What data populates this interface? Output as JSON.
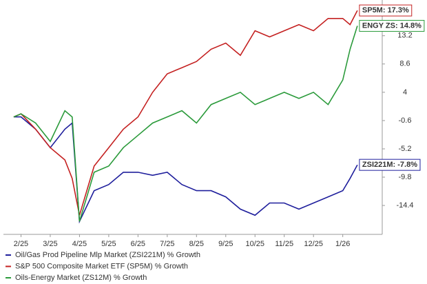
{
  "chart_data": {
    "type": "line",
    "x": [
      -0.25,
      0,
      0.5,
      1,
      1.5,
      1.75,
      2,
      2.5,
      3,
      3.5,
      4,
      4.5,
      5,
      5.5,
      6,
      6.5,
      7,
      7.5,
      8,
      8.5,
      9,
      9.5,
      10,
      10.5,
      11,
      11.25,
      11.5
    ],
    "xlim": [
      -0.6,
      12.35
    ],
    "xticks": [
      {
        "value": 0,
        "label": "2/25"
      },
      {
        "value": 1,
        "label": "3/25"
      },
      {
        "value": 2,
        "label": "4/25"
      },
      {
        "value": 3,
        "label": "5/25"
      },
      {
        "value": 4,
        "label": "6/25"
      },
      {
        "value": 5,
        "label": "7/25"
      },
      {
        "value": 6,
        "label": "8/25"
      },
      {
        "value": 7,
        "label": "9/25"
      },
      {
        "value": 8,
        "label": "10/25"
      },
      {
        "value": 9,
        "label": "11/25"
      },
      {
        "value": 10,
        "label": "12/25"
      },
      {
        "value": 11,
        "label": "1/26"
      }
    ],
    "ylim": [
      -19.1,
      19.0
    ],
    "yticks": [
      13.2,
      8.6,
      4.0,
      -0.6,
      -5.2,
      -9.8,
      -14.4
    ],
    "series": [
      {
        "name": "Oil/Gas Prod Pipeline Mlp Market (ZSI221M) % Growth",
        "color": "#1e1e9c",
        "end_label": "ZSI221M: -7.8%",
        "values": [
          0,
          0,
          -2,
          -5,
          -2,
          -1,
          -17,
          -12,
          -11,
          -9,
          -9,
          -9.5,
          -9,
          -11,
          -12,
          -12,
          -13,
          -15,
          -16,
          -14,
          -14,
          -15,
          -14,
          -13,
          -12,
          -10,
          -7.8
        ]
      },
      {
        "name": "S&P 500 Composite Market ETF (SP5M) % Growth",
        "color": "#c42020",
        "end_label": "SP5M: 17.3%",
        "values": [
          0,
          0.5,
          -2,
          -5,
          -7,
          -10,
          -16,
          -8,
          -5,
          -2,
          0,
          4,
          7,
          8,
          9,
          11,
          12,
          10,
          14,
          13,
          14,
          15,
          14,
          16,
          16,
          15,
          17.3
        ]
      },
      {
        "name": "Oils-Energy Market (ZS12M) % Growth",
        "color": "#2a9a3a",
        "end_label": "ENGY ZS: 14.8%",
        "values": [
          0,
          0.5,
          -1,
          -4,
          1,
          0,
          -17,
          -9,
          -8,
          -5,
          -3,
          -1,
          0,
          1,
          -1,
          2,
          3,
          4,
          2,
          3,
          4,
          3,
          4,
          2,
          6,
          11,
          14.8
        ]
      }
    ]
  }
}
